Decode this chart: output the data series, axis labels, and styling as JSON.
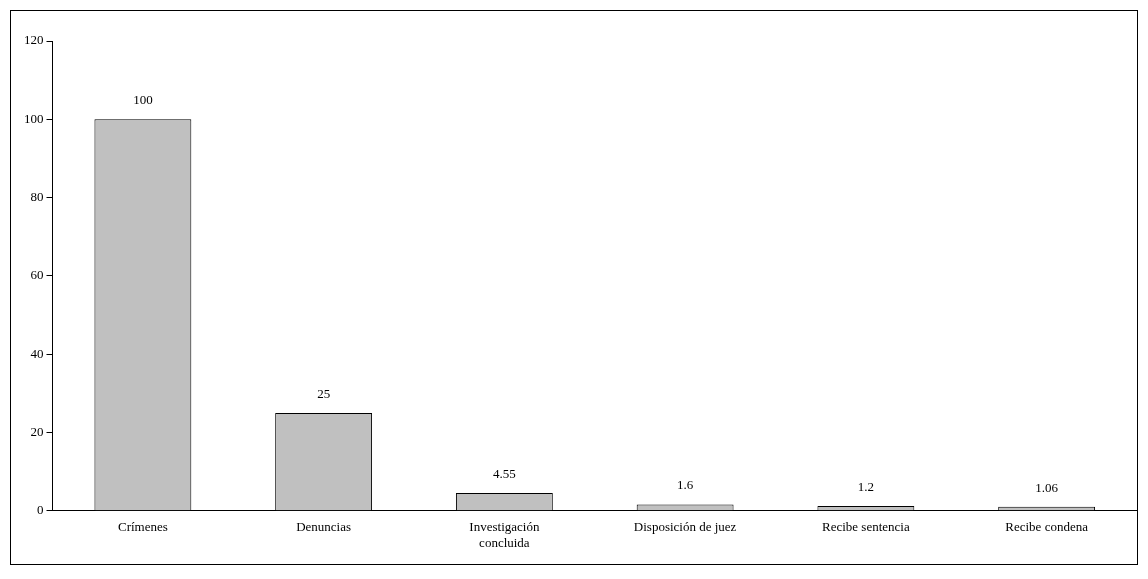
{
  "chart_data": {
    "type": "bar",
    "categories": [
      "Crímenes",
      "Denuncias",
      "Investigación concluida",
      "Disposición de juez",
      "Recibe sentencia",
      "Recibe condena"
    ],
    "values": [
      100,
      25,
      4.55,
      1.6,
      1.2,
      1.06
    ],
    "color": "#c0c0c0",
    "ylim": [
      0,
      120
    ],
    "yticks": [
      0,
      20,
      40,
      60,
      80,
      100,
      120
    ],
    "grid": false,
    "legend": false,
    "data_labels": true
  }
}
